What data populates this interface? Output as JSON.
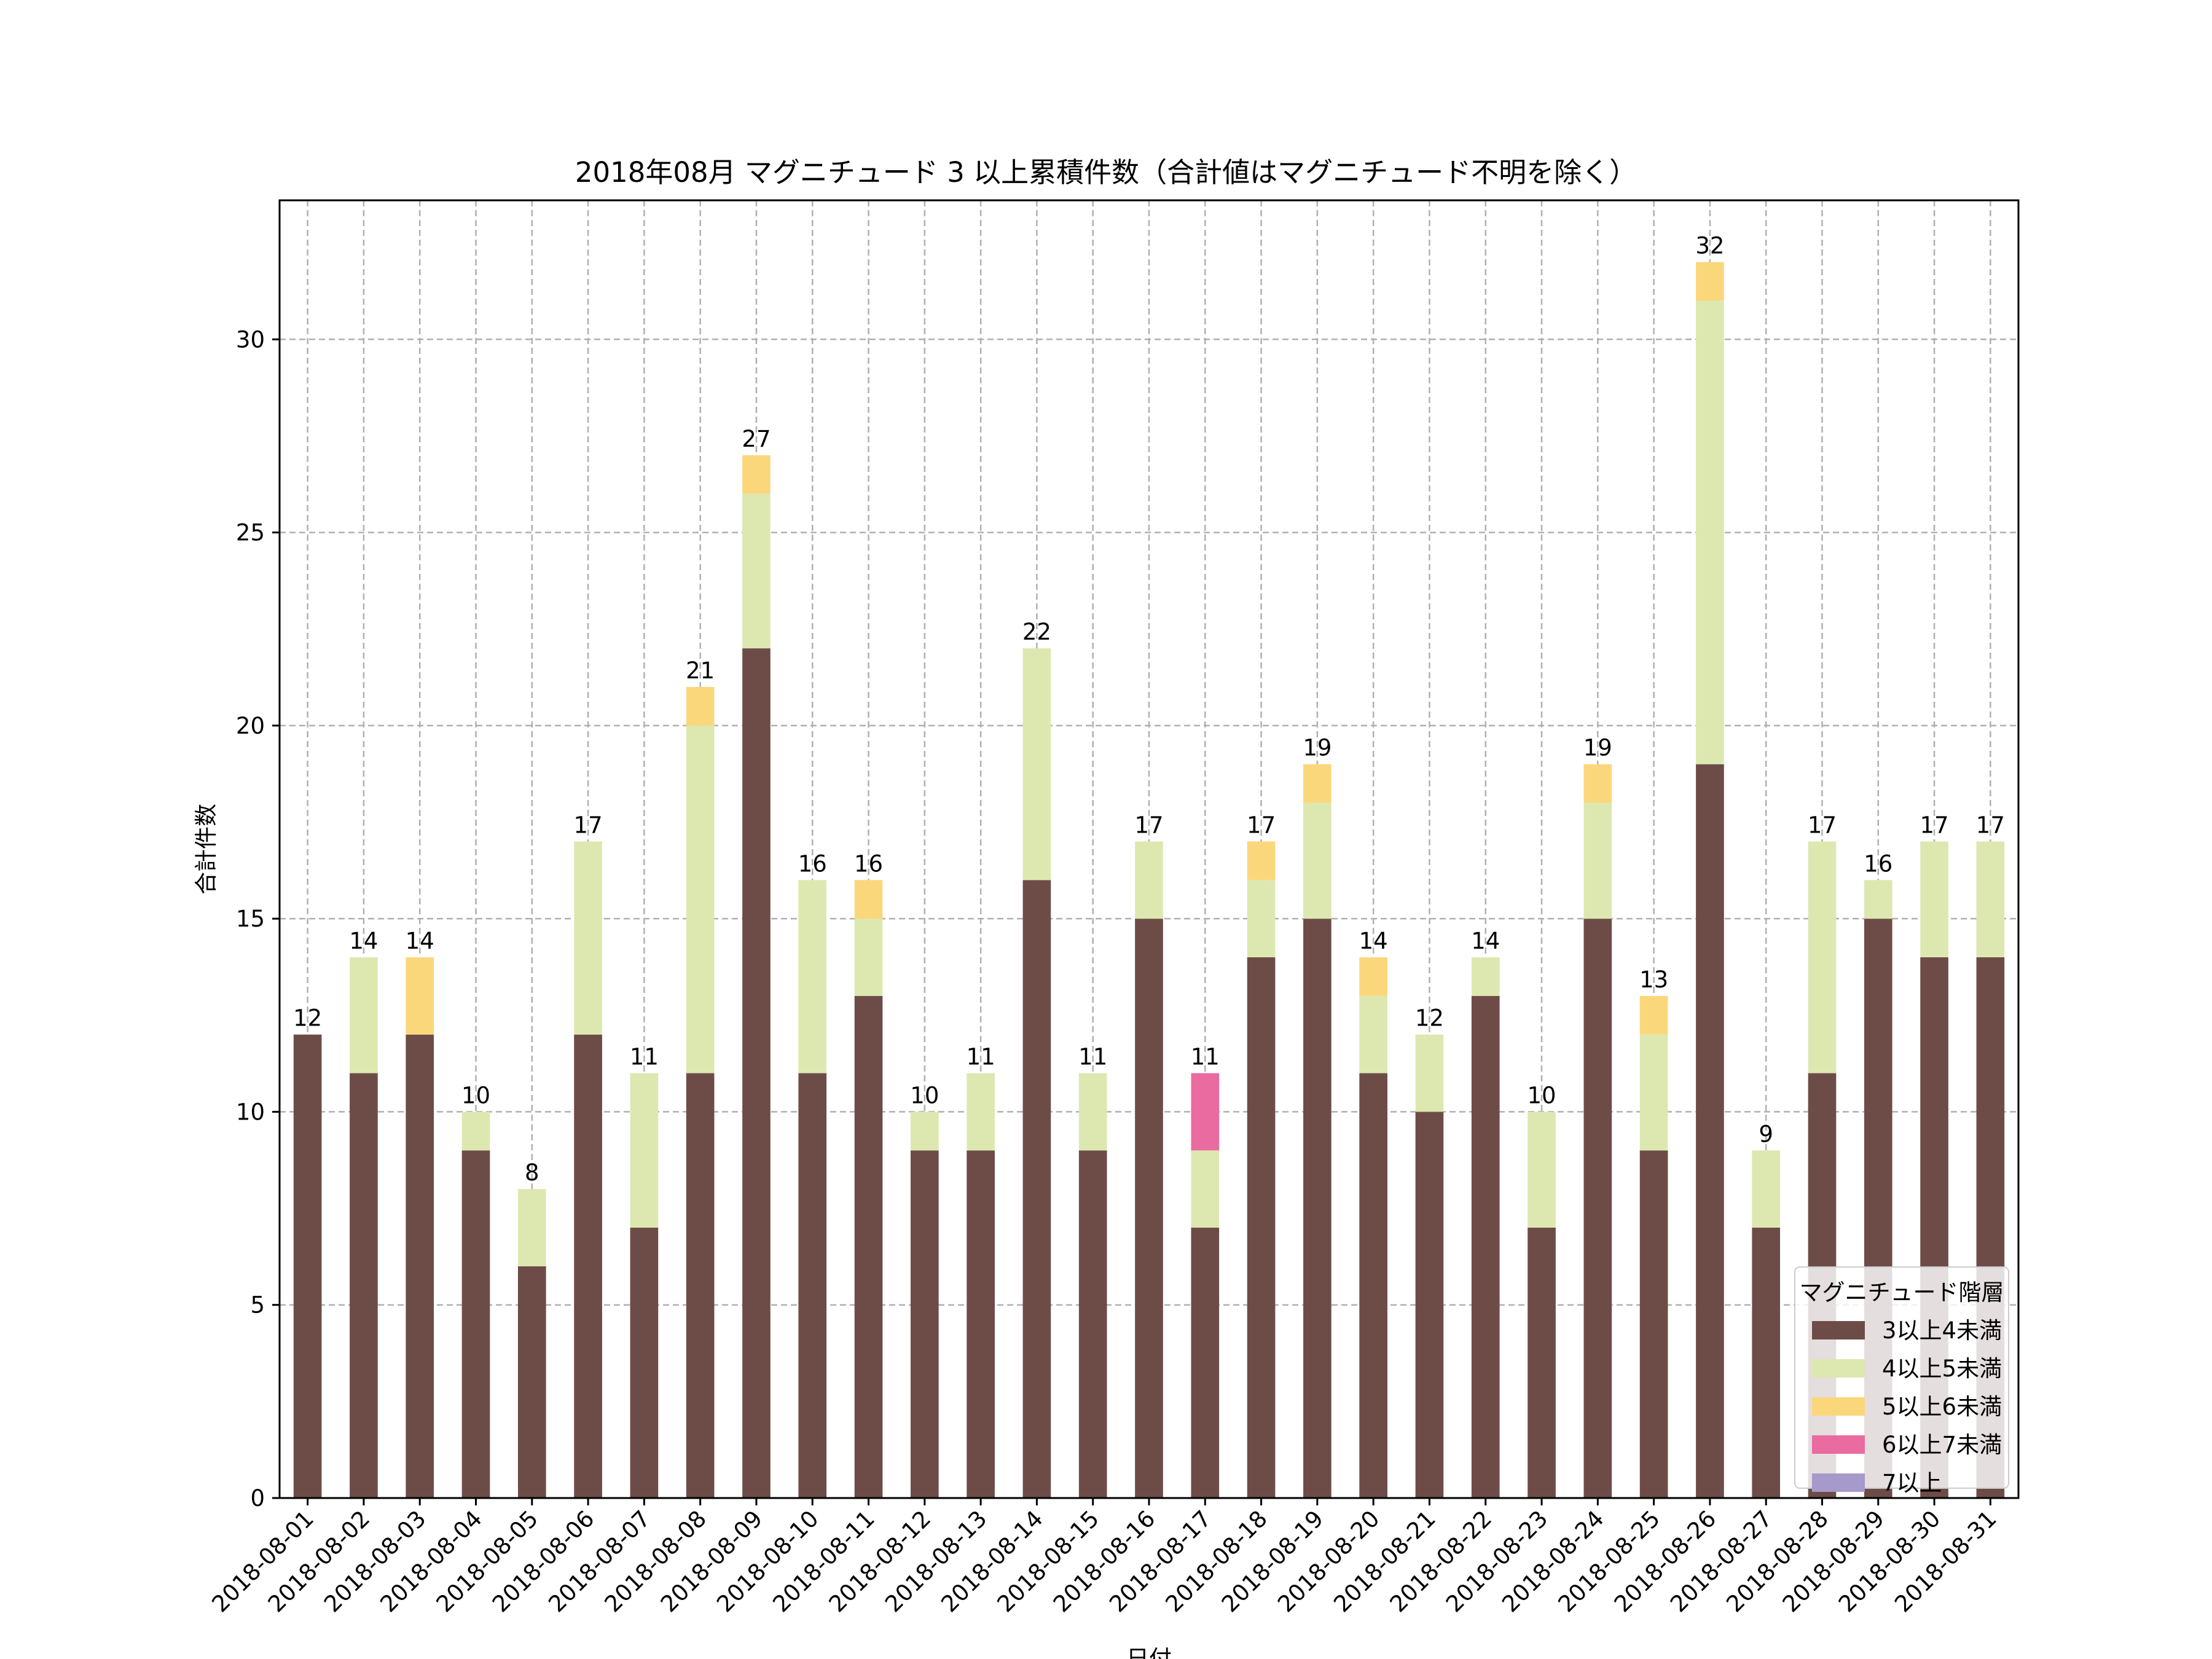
{
  "chart_data": {
    "type": "bar",
    "stacked": true,
    "title": "2018年08月 マグニチュード 3 以上累積件数（合計値はマグニチュード不明を除く）",
    "xlabel": "日付",
    "ylabel": "合計件数",
    "ylim": [
      0,
      33.6
    ],
    "yticks": [
      0,
      5,
      10,
      15,
      20,
      25,
      30
    ],
    "grid": true,
    "legend_title": "マグニチュード階層",
    "legend_position": "lower-right",
    "categories": [
      "2018-08-01",
      "2018-08-02",
      "2018-08-03",
      "2018-08-04",
      "2018-08-05",
      "2018-08-06",
      "2018-08-07",
      "2018-08-08",
      "2018-08-09",
      "2018-08-10",
      "2018-08-11",
      "2018-08-12",
      "2018-08-13",
      "2018-08-14",
      "2018-08-15",
      "2018-08-16",
      "2018-08-17",
      "2018-08-18",
      "2018-08-19",
      "2018-08-20",
      "2018-08-21",
      "2018-08-22",
      "2018-08-23",
      "2018-08-24",
      "2018-08-25",
      "2018-08-26",
      "2018-08-27",
      "2018-08-28",
      "2018-08-29",
      "2018-08-30",
      "2018-08-31"
    ],
    "series": [
      {
        "name": "3以上4未満",
        "color": "#6d4c47",
        "values": [
          12,
          11,
          12,
          9,
          6,
          12,
          7,
          11,
          22,
          11,
          13,
          9,
          9,
          16,
          9,
          15,
          7,
          14,
          15,
          11,
          10,
          13,
          7,
          15,
          9,
          19,
          7,
          11,
          15,
          14,
          14
        ]
      },
      {
        "name": "4以上5未満",
        "color": "#dde8b0",
        "values": [
          0,
          3,
          0,
          1,
          2,
          5,
          4,
          9,
          4,
          5,
          2,
          1,
          2,
          6,
          2,
          2,
          2,
          2,
          3,
          2,
          2,
          1,
          3,
          3,
          3,
          12,
          2,
          6,
          1,
          3,
          3
        ]
      },
      {
        "name": "5以上6未満",
        "color": "#fbd77c",
        "values": [
          0,
          0,
          2,
          0,
          0,
          0,
          0,
          1,
          1,
          0,
          1,
          0,
          0,
          0,
          0,
          0,
          0,
          1,
          1,
          1,
          0,
          0,
          0,
          1,
          1,
          1,
          0,
          0,
          0,
          0,
          0
        ]
      },
      {
        "name": "6以上7未満",
        "color": "#ea6b9f",
        "values": [
          0,
          0,
          0,
          0,
          0,
          0,
          0,
          0,
          0,
          0,
          0,
          0,
          0,
          0,
          0,
          0,
          2,
          0,
          0,
          0,
          0,
          0,
          0,
          0,
          0,
          0,
          0,
          0,
          0,
          0,
          0
        ]
      },
      {
        "name": "7以上",
        "color": "#a59ac9",
        "values": [
          0,
          0,
          0,
          0,
          0,
          0,
          0,
          0,
          0,
          0,
          0,
          0,
          0,
          0,
          0,
          0,
          0,
          0,
          0,
          0,
          0,
          0,
          0,
          0,
          0,
          0,
          0,
          0,
          0,
          0,
          0
        ]
      }
    ],
    "totals": [
      12,
      14,
      14,
      10,
      8,
      17,
      11,
      21,
      27,
      16,
      16,
      10,
      11,
      22,
      11,
      17,
      11,
      17,
      19,
      14,
      12,
      14,
      10,
      19,
      13,
      32,
      9,
      17,
      16,
      17,
      17
    ]
  }
}
